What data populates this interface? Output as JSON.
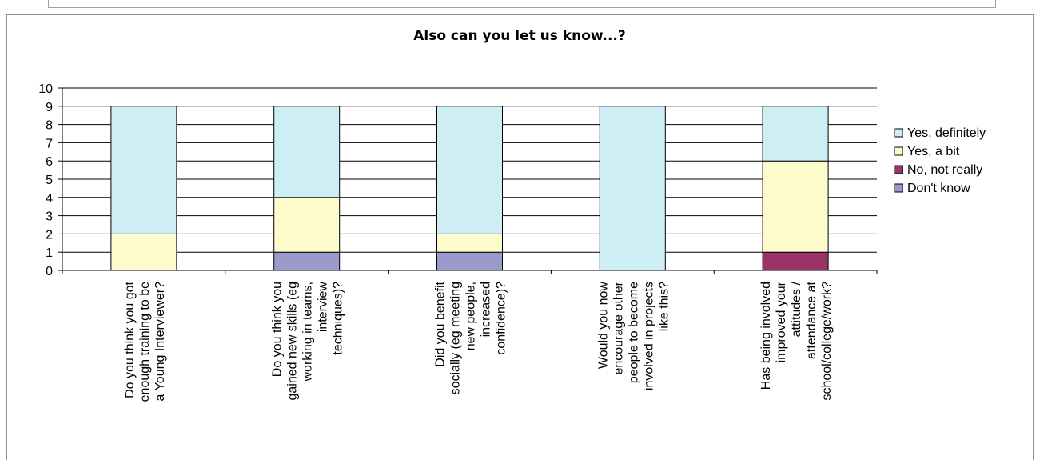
{
  "chart_data": {
    "type": "bar",
    "stacked": true,
    "title": "Also can you let us know...?",
    "xlabel": "",
    "ylabel": "",
    "ylim": [
      0,
      10
    ],
    "yticks": [
      0,
      1,
      2,
      3,
      4,
      5,
      6,
      7,
      8,
      9,
      10
    ],
    "grid": true,
    "legend_position": "right",
    "categories": [
      [
        "Do you think you got",
        "enough training to be",
        "a Young Interviewer?"
      ],
      [
        "Do you think you",
        "gained new skills (eg",
        "working in teams,",
        "interview",
        "techniques)?"
      ],
      [
        "Did you benefit",
        "socially (eg meeting",
        "new people,",
        "increased",
        "confidence)?"
      ],
      [
        "Would you now",
        "encourage other",
        "people to become",
        "involved in projects",
        "like this?"
      ],
      [
        "Has being involved",
        "improved your",
        "attitudes /",
        "attendance at",
        "school/college/work?"
      ]
    ],
    "series": [
      {
        "name": "Don't know",
        "color": "#9999cc",
        "values": [
          0,
          1,
          1,
          0,
          0
        ]
      },
      {
        "name": "No, not really",
        "color": "#993366",
        "values": [
          0,
          0,
          0,
          0,
          1
        ]
      },
      {
        "name": "Yes, a bit",
        "color": "#fdfacb",
        "values": [
          2,
          3,
          1,
          0,
          5
        ]
      },
      {
        "name": "Yes, definitely",
        "color": "#cdeef5",
        "values": [
          7,
          5,
          7,
          9,
          3
        ]
      }
    ],
    "legend_order": [
      "Yes, definitely",
      "Yes, a bit",
      "No, not really",
      "Don't know"
    ]
  }
}
